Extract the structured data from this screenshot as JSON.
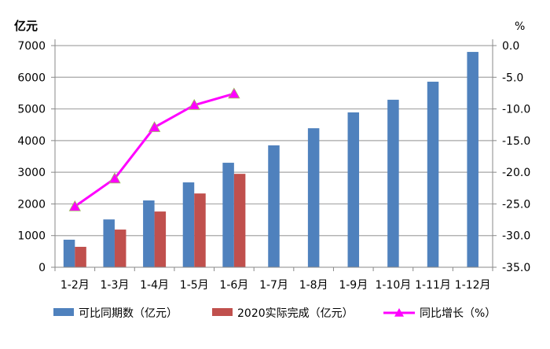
{
  "chart_data": {
    "type": "bar",
    "title": "",
    "ylabel": "亿元",
    "y2label": "%",
    "categories": [
      "1-2月",
      "1-3月",
      "1-4月",
      "1-5月",
      "1-6月",
      "1-7月",
      "1-8月",
      "1-9月",
      "1-10月",
      "1-11月",
      "1-12月"
    ],
    "ylim": [
      0,
      7000
    ],
    "yticks": [
      0,
      1000,
      2000,
      3000,
      4000,
      5000,
      6000,
      7000
    ],
    "y2lim": [
      -35,
      0
    ],
    "y2ticks": [
      "-35.0",
      "-30.0",
      "-25.0",
      "-20.0",
      "-15.0",
      "-10.0",
      "-5.0",
      "0.0"
    ],
    "grid": true,
    "legend_placement": "bottom",
    "series": [
      {
        "name": "可比同期数（亿元）",
        "kind": "bar",
        "axis": "left",
        "color": "#4f81bd",
        "values": [
          870,
          1510,
          2110,
          2680,
          3300,
          3850,
          4390,
          4890,
          5290,
          5860,
          6800
        ]
      },
      {
        "name": "2020实际完成（亿元）",
        "kind": "bar",
        "axis": "left",
        "color": "#c0504d",
        "values": [
          645,
          1190,
          1760,
          2330,
          2950,
          null,
          null,
          null,
          null,
          null,
          null
        ]
      },
      {
        "name": "同比增长（%）",
        "kind": "line",
        "axis": "right",
        "color": "#ff00ff",
        "marker": "triangle",
        "values": [
          -25.4,
          -21.0,
          -12.9,
          -9.4,
          -7.6,
          null,
          null,
          null,
          null,
          null,
          null
        ]
      }
    ]
  }
}
